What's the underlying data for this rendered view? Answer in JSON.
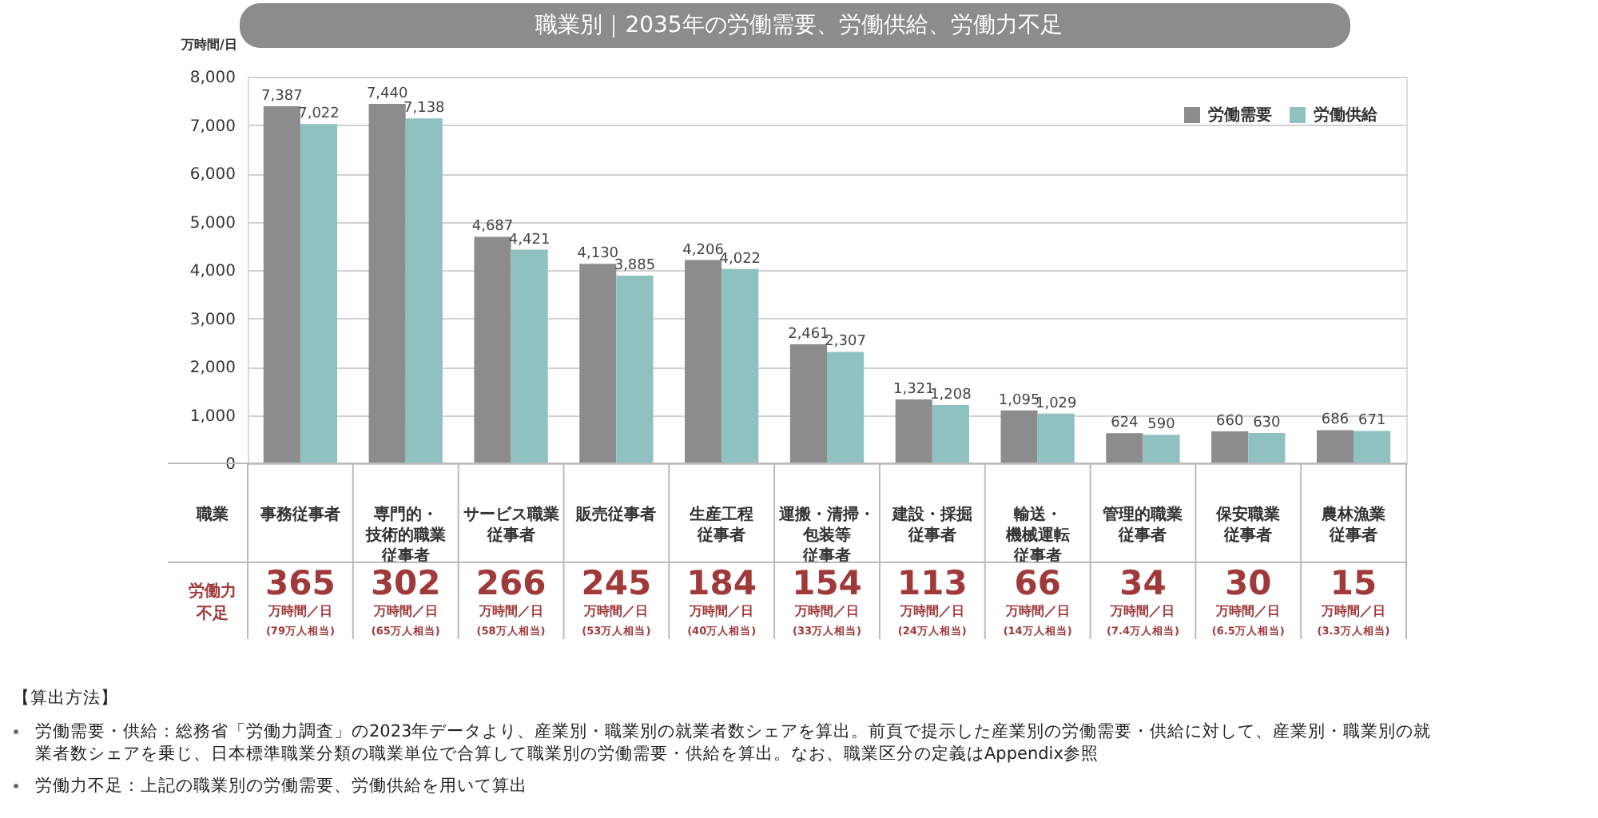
{
  "chart_data": {
    "type": "bar",
    "title": "職業別｜2035年の労働需要、労働供給、労働力不足",
    "ylabel": "万時間/日",
    "categories": [
      "事務従事者",
      "専門的・技術的職業従事者",
      "サービス職業従事者",
      "販売従事者",
      "生産工程従事者",
      "運搬・清掃・包装等従事者",
      "建設・採掘従事者",
      "輸送・機械運転従事者",
      "管理的職業従事者",
      "保安職業従事者",
      "農林漁業従事者"
    ],
    "series": [
      {
        "name": "労働需要",
        "color": "#8c8c8c",
        "values": [
          7387,
          7440,
          4687,
          4130,
          4206,
          2461,
          1321,
          1095,
          624,
          660,
          686
        ],
        "value_labels": [
          "7,387",
          "7,440",
          "4,687",
          "4,130",
          "4,206",
          "2,461",
          "1,321",
          "1,095",
          "624",
          "660",
          "686"
        ]
      },
      {
        "name": "労働供給",
        "color": "#8fc1c0",
        "values": [
          7022,
          7138,
          4421,
          3885,
          4022,
          2307,
          1208,
          1029,
          590,
          630,
          671
        ],
        "value_labels": [
          "7,022",
          "7,138",
          "4,421",
          "3,885",
          "4,022",
          "2,307",
          "1,208",
          "1,029",
          "590",
          "630",
          "671"
        ]
      }
    ],
    "ylim": [
      0,
      8000
    ],
    "yticks": [
      {
        "value": 0,
        "label": "0"
      },
      {
        "value": 1000,
        "label": "1,000"
      },
      {
        "value": 2000,
        "label": "2,000"
      },
      {
        "value": 3000,
        "label": "3,000"
      },
      {
        "value": 4000,
        "label": "4,000"
      },
      {
        "value": 5000,
        "label": "5,000"
      },
      {
        "value": 6000,
        "label": "6,000"
      },
      {
        "value": 7000,
        "label": "7,000"
      },
      {
        "value": 8000,
        "label": "8,000"
      }
    ],
    "grid": "y",
    "legend": "top right",
    "annotations": [
      "職業",
      "労働力不足",
      "365",
      "万時間／日",
      "(79万人相当)",
      "302",
      "万時間／日",
      "(65万人相当)",
      "266",
      "万時間／日",
      "(58万人相当)",
      "245",
      "万時間／日",
      "(53万人相当)",
      "184",
      "万時間／日",
      "(40万人相当)",
      "154",
      "万時間／日",
      "(33万人相当)",
      "113",
      "万時間／日",
      "(24万人相当)",
      "66",
      "万時間／日",
      "(14万人相当)",
      "34",
      "万時間／日",
      "(7.4万人相当)",
      "30",
      "万時間／日",
      "(6.5万人相当)",
      "15",
      "万時間／日",
      "(3.3万人相当)",
      "【算出方法】",
      "労働需要・供給：総務省「労働力調査」の2023年データより、産業別・職業別の就業者数シェアを算出。前頁で提示した産業別の労働需要・供給に対して、産業別・職業別の就業者数シェアを乗じ、日本標準職業分類の職業単位で合算して職業別の労働需要・供給を算出。なお、職業区分の定義はAppendix参照",
      "労働力不足：上記の職業別の労働需要、労働供給を用いて算出"
    ]
  }
}
